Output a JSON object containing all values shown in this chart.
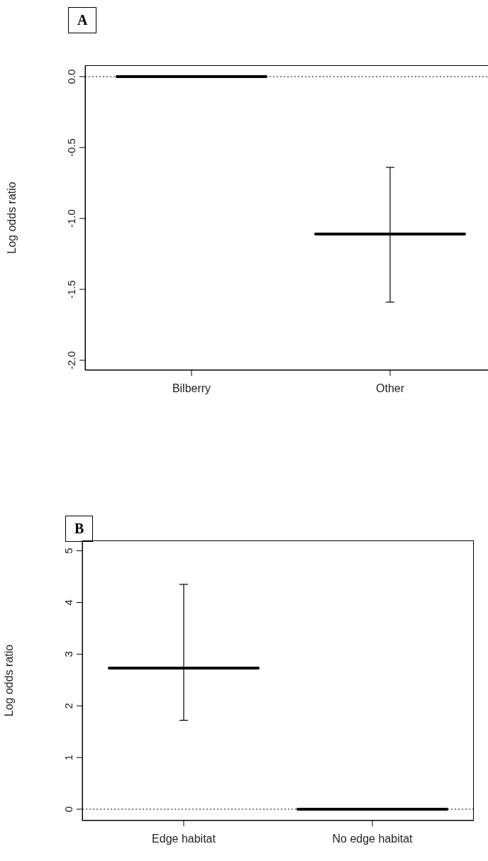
{
  "chart_data": [
    {
      "type": "box",
      "title": "A",
      "ylabel": "Log odds ratio",
      "categories": [
        "Bilberry",
        "Other"
      ],
      "color": "#000000",
      "boxes": [
        {
          "low": 0,
          "q1": 0,
          "median": 0,
          "q3": 0,
          "high": 0
        },
        {
          "low": -1.59,
          "q1": -1.11,
          "median": -1.11,
          "q3": -1.11,
          "high": -0.64
        }
      ],
      "ylim": [
        -2.07,
        0.08
      ],
      "yticks": [
        {
          "value": 0,
          "label": "0.0"
        },
        -0.5,
        {
          "value": -1,
          "label": "-1.0"
        },
        -1.5,
        {
          "value": -2,
          "label": "-2.0"
        }
      ],
      "ref_lines": [
        {
          "axis": "y",
          "value": 0,
          "label": null,
          "color": "#000000",
          "line_style": "dotted"
        }
      ]
    },
    {
      "type": "box",
      "title": "B",
      "ylabel": "Log odds ratio",
      "categories": [
        "Edge habitat",
        "No edge habitat"
      ],
      "color": "#000000",
      "boxes": [
        {
          "low": 1.72,
          "q1": 2.73,
          "median": 2.73,
          "q3": 2.73,
          "high": 4.35
        },
        {
          "low": 0,
          "q1": 0,
          "median": 0,
          "q3": 0,
          "high": 0
        }
      ],
      "ylim": [
        -0.22,
        5.2
      ],
      "yticks": [
        0,
        1,
        2,
        3,
        4,
        5
      ],
      "ref_lines": [
        {
          "axis": "y",
          "value": 0,
          "label": null,
          "color": "#000000",
          "line_style": "dotted"
        }
      ]
    }
  ]
}
